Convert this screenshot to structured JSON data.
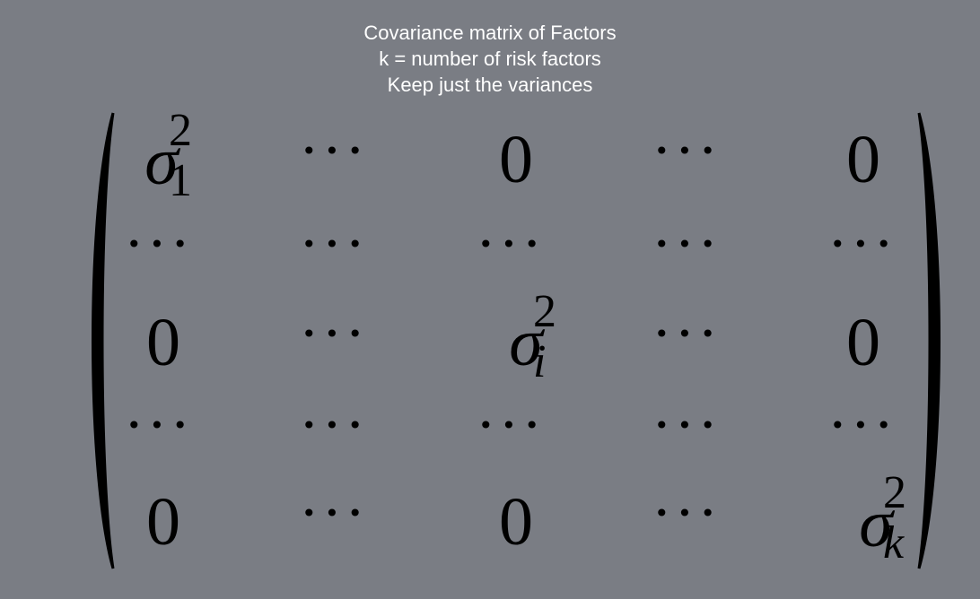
{
  "header": {
    "line1": "Covariance matrix of Factors",
    "line2": "k = number of risk factors",
    "line3": "Keep just the variances"
  },
  "matrix": {
    "zero": "0",
    "dots": "···",
    "sigma": "σ",
    "exponent": "2",
    "subscripts": {
      "first": "1",
      "middle": "i",
      "last": "k"
    }
  }
}
